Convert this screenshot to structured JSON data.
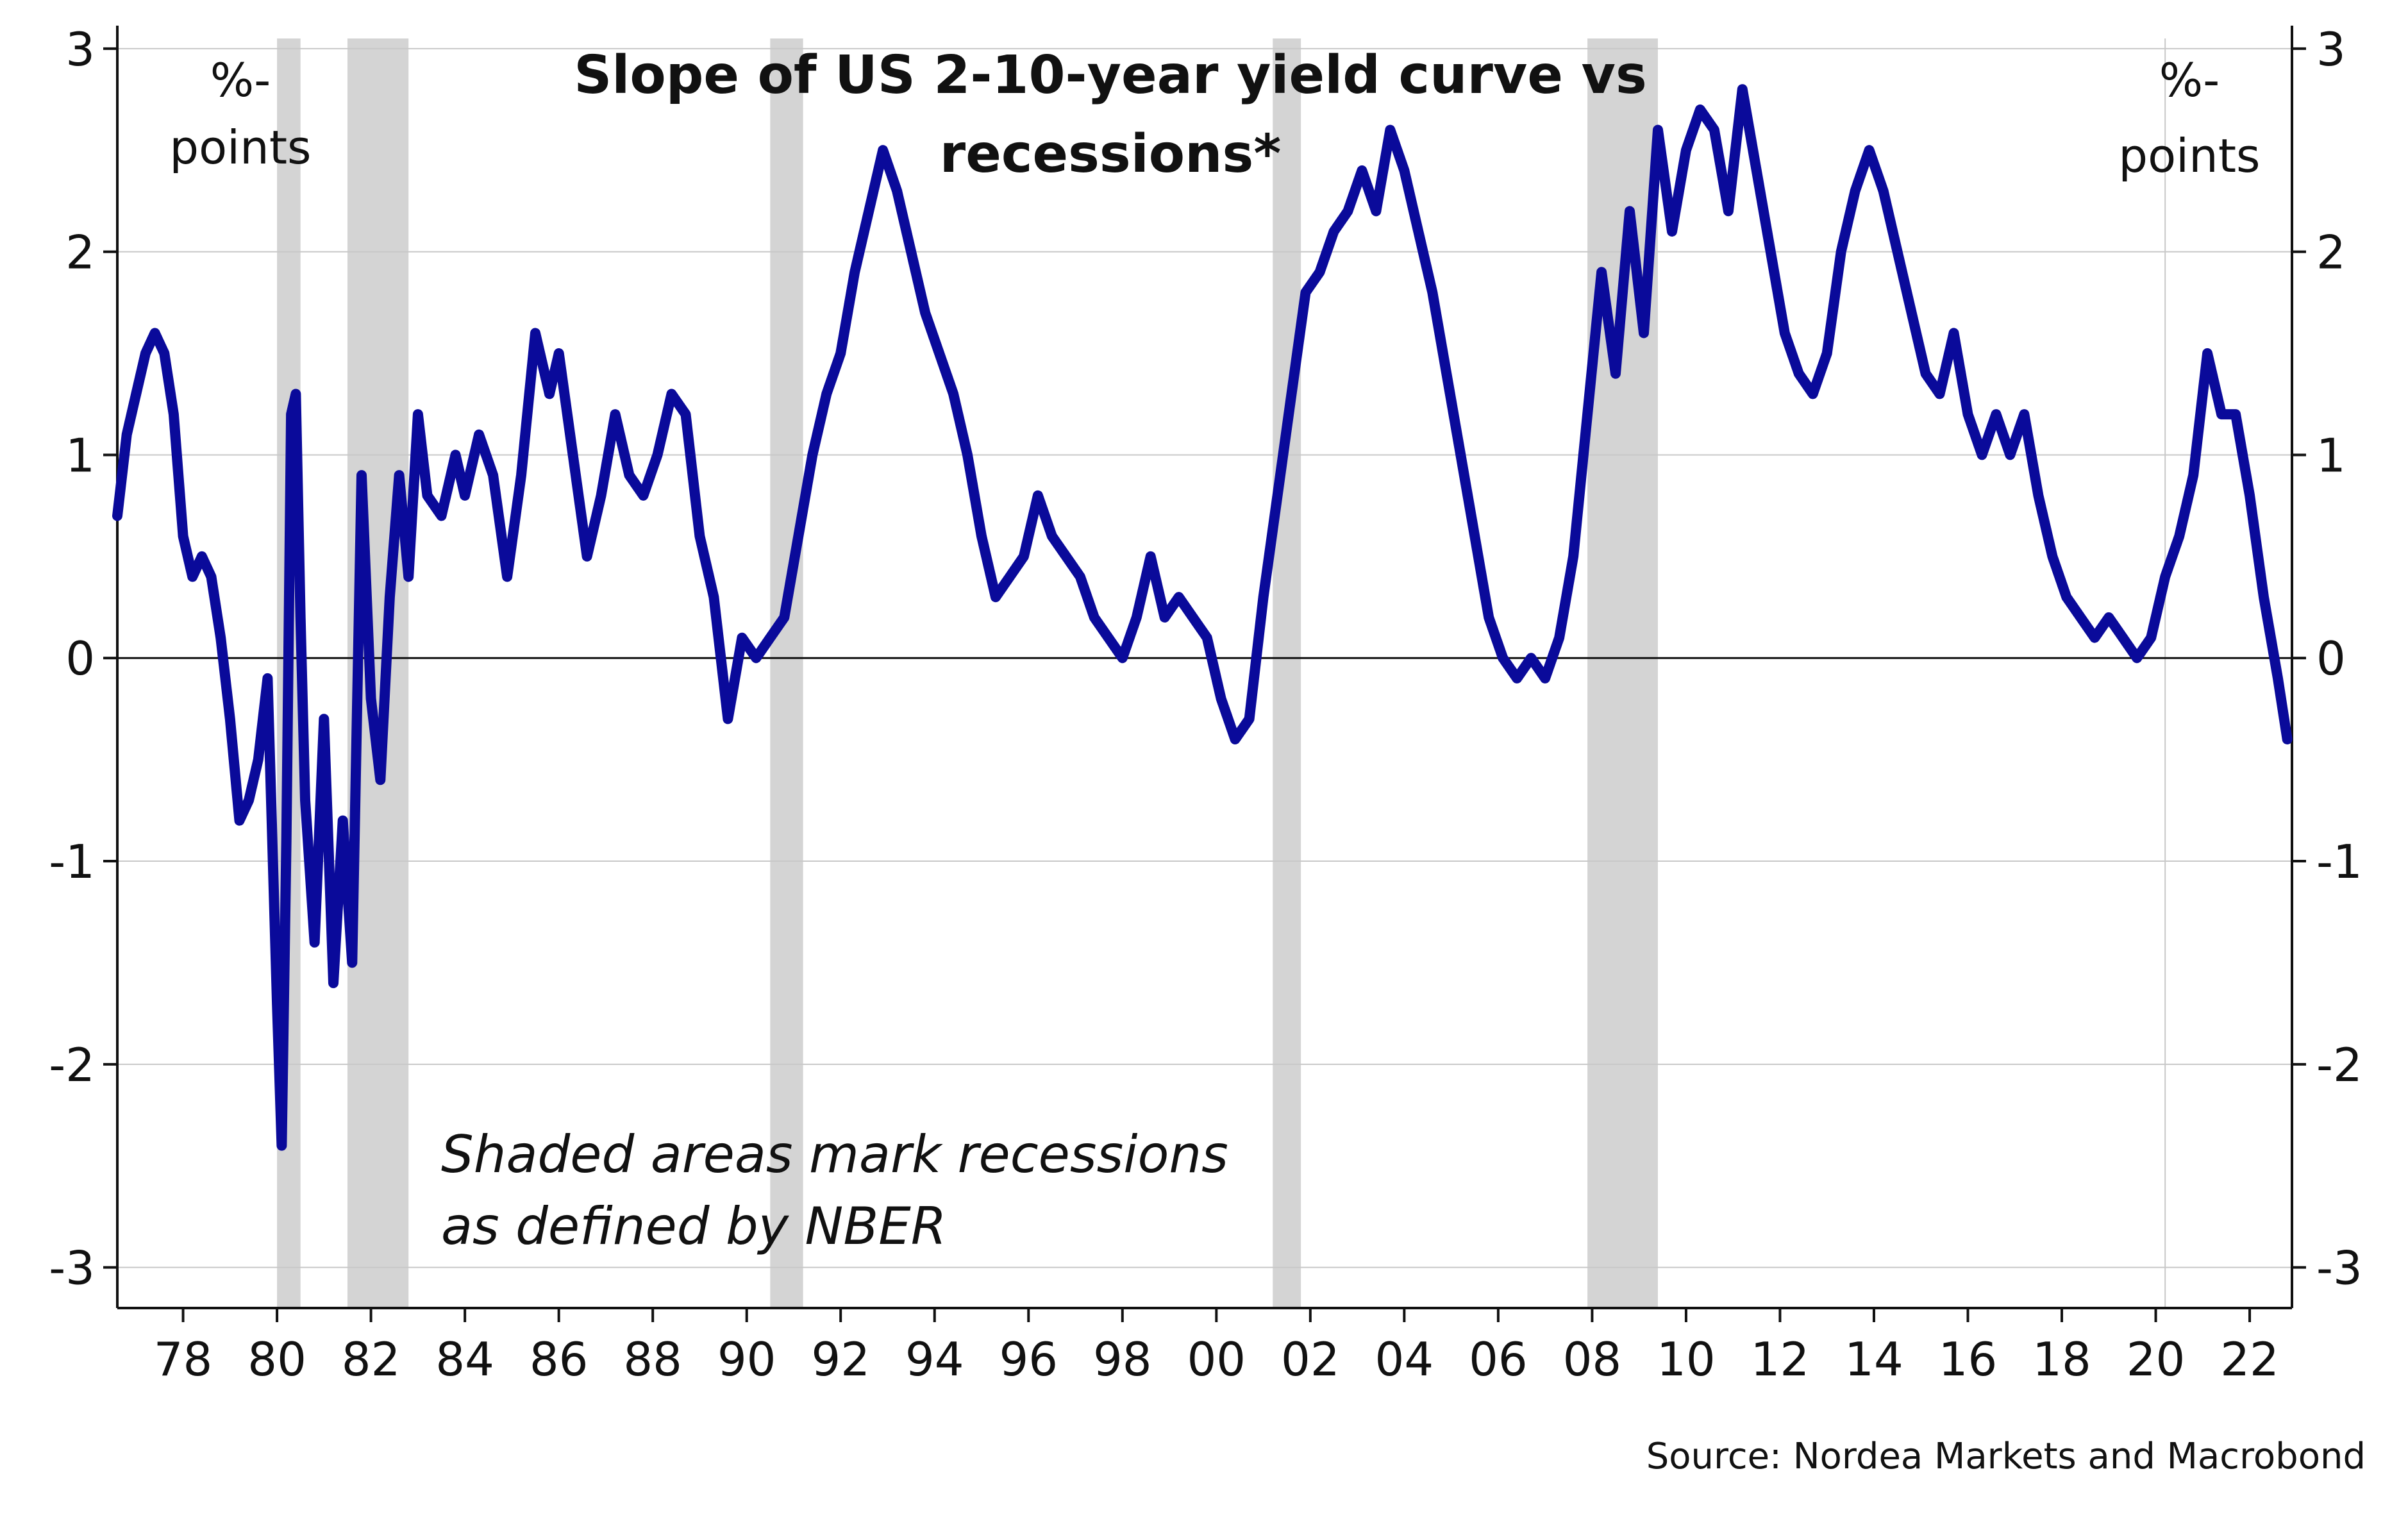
{
  "chart_data": {
    "type": "line",
    "title": "Slope of US 2-10-year yield curve vs recessions*",
    "title_lines": [
      "Slope of US 2-10-year yield curve vs",
      "recessions*"
    ],
    "ylabel_left": [
      "%-",
      "points"
    ],
    "ylabel_right": [
      "%-",
      "points"
    ],
    "annotation_lines": [
      "Shaded areas mark recessions",
      "as defined by NBER"
    ],
    "source": "Source: Nordea Markets and Macrobond",
    "xlim": [
      1976.6,
      2022.9
    ],
    "ylim": [
      -3.2,
      3.05
    ],
    "yticks": [
      3,
      2,
      1,
      0,
      -1,
      -2,
      -3
    ],
    "ytick_labels": [
      "3",
      "2",
      "1",
      "0",
      "-1",
      "-2",
      "-3"
    ],
    "xticks": [
      1978,
      1980,
      1982,
      1984,
      1986,
      1988,
      1990,
      1992,
      1994,
      1996,
      1998,
      2000,
      2002,
      2004,
      2006,
      2008,
      2010,
      2012,
      2014,
      2016,
      2018,
      2020,
      2022
    ],
    "xtick_labels": [
      "78",
      "80",
      "82",
      "84",
      "86",
      "88",
      "90",
      "92",
      "94",
      "96",
      "98",
      "00",
      "02",
      "04",
      "06",
      "08",
      "10",
      "12",
      "14",
      "16",
      "18",
      "20",
      "22"
    ],
    "grid": true,
    "legend": "none",
    "colors": {
      "line": "#0a0a9a",
      "recession": "#d4d4d4",
      "grid": "#c8c8c8",
      "axis": "#111111"
    },
    "recessions": [
      {
        "start": 1980.0,
        "end": 1980.5
      },
      {
        "start": 1981.5,
        "end": 1982.8
      },
      {
        "start": 1990.5,
        "end": 1991.2
      },
      {
        "start": 2001.2,
        "end": 2001.8
      },
      {
        "start": 2007.9,
        "end": 2009.4
      }
    ],
    "series": [
      {
        "x": [
          1976.6,
          1976.8,
          1977.0,
          1977.2,
          1977.4,
          1977.6,
          1977.8,
          1978.0,
          1978.2,
          1978.4,
          1978.6,
          1978.8,
          1979.0,
          1979.2,
          1979.4,
          1979.6,
          1979.8,
          1980.0,
          1980.1,
          1980.2,
          1980.3,
          1980.4,
          1980.5,
          1980.6,
          1980.8,
          1981.0,
          1981.2,
          1981.4,
          1981.6,
          1981.8,
          1982.0,
          1982.2,
          1982.4,
          1982.6,
          1982.8,
          1983.0,
          1983.2,
          1983.5,
          1983.8,
          1984.0,
          1984.3,
          1984.6,
          1984.9,
          1985.2,
          1985.5,
          1985.8,
          1986.0,
          1986.3,
          1986.6,
          1986.9,
          1987.2,
          1987.5,
          1987.8,
          1988.1,
          1988.4,
          1988.7,
          1989.0,
          1989.3,
          1989.6,
          1989.9,
          1990.2,
          1990.5,
          1990.8,
          1991.1,
          1991.4,
          1991.7,
          1992.0,
          1992.3,
          1992.6,
          1992.9,
          1993.2,
          1993.5,
          1993.8,
          1994.1,
          1994.4,
          1994.7,
          1995.0,
          1995.3,
          1995.6,
          1995.9,
          1996.2,
          1996.5,
          1996.8,
          1997.1,
          1997.4,
          1997.7,
          1998.0,
          1998.3,
          1998.6,
          1998.9,
          1999.2,
          1999.5,
          1999.8,
          2000.1,
          2000.4,
          2000.7,
          2001.0,
          2001.3,
          2001.6,
          2001.9,
          2002.2,
          2002.5,
          2002.8,
          2003.1,
          2003.4,
          2003.7,
          2004.0,
          2004.3,
          2004.6,
          2004.9,
          2005.2,
          2005.5,
          2005.8,
          2006.1,
          2006.4,
          2006.7,
          2007.0,
          2007.3,
          2007.6,
          2007.9,
          2008.2,
          2008.5,
          2008.8,
          2009.1,
          2009.4,
          2009.7,
          2010.0,
          2010.3,
          2010.6,
          2010.9,
          2011.2,
          2011.5,
          2011.8,
          2012.1,
          2012.4,
          2012.7,
          2013.0,
          2013.3,
          2013.6,
          2013.9,
          2014.2,
          2014.5,
          2014.8,
          2015.1,
          2015.4,
          2015.7,
          2016.0,
          2016.3,
          2016.6,
          2016.9,
          2017.2,
          2017.5,
          2017.8,
          2018.1,
          2018.4,
          2018.7,
          2019.0,
          2019.3,
          2019.6,
          2019.9,
          2020.2,
          2020.5,
          2020.8,
          2021.1,
          2021.4,
          2021.7,
          2022.0,
          2022.3,
          2022.6,
          2022.8
        ],
        "values": [
          0.7,
          1.1,
          1.3,
          1.5,
          1.6,
          1.5,
          1.2,
          0.6,
          0.4,
          0.5,
          0.4,
          0.1,
          -0.3,
          -0.8,
          -0.7,
          -0.5,
          -0.1,
          -1.7,
          -2.4,
          -0.9,
          1.2,
          1.3,
          0.2,
          -0.7,
          -1.4,
          -0.3,
          -1.6,
          -0.8,
          -1.5,
          0.9,
          -0.2,
          -0.6,
          0.3,
          0.9,
          0.4,
          1.2,
          0.8,
          0.7,
          1.0,
          0.8,
          1.1,
          0.9,
          0.4,
          0.9,
          1.6,
          1.3,
          1.5,
          1.0,
          0.5,
          0.8,
          1.2,
          0.9,
          0.8,
          1.0,
          1.3,
          1.2,
          0.6,
          0.3,
          -0.3,
          0.1,
          0.0,
          0.1,
          0.2,
          0.6,
          1.0,
          1.3,
          1.5,
          1.9,
          2.2,
          2.5,
          2.3,
          2.0,
          1.7,
          1.5,
          1.3,
          1.0,
          0.6,
          0.3,
          0.4,
          0.5,
          0.8,
          0.6,
          0.5,
          0.4,
          0.2,
          0.1,
          0.0,
          0.2,
          0.5,
          0.2,
          0.3,
          0.2,
          0.1,
          -0.2,
          -0.4,
          -0.3,
          0.3,
          0.8,
          1.3,
          1.8,
          1.9,
          2.1,
          2.2,
          2.4,
          2.2,
          2.6,
          2.4,
          2.1,
          1.8,
          1.4,
          1.0,
          0.6,
          0.2,
          0.0,
          -0.1,
          0.0,
          -0.1,
          0.1,
          0.5,
          1.2,
          1.9,
          1.4,
          2.2,
          1.6,
          2.6,
          2.1,
          2.5,
          2.7,
          2.6,
          2.2,
          2.8,
          2.4,
          2.0,
          1.6,
          1.4,
          1.3,
          1.5,
          2.0,
          2.3,
          2.5,
          2.3,
          2.0,
          1.7,
          1.4,
          1.3,
          1.6,
          1.2,
          1.0,
          1.2,
          1.0,
          1.2,
          0.8,
          0.5,
          0.3,
          0.2,
          0.1,
          0.2,
          0.1,
          0.0,
          0.1,
          0.4,
          0.6,
          0.9,
          1.5,
          1.2,
          1.2,
          0.8,
          0.3,
          -0.1,
          -0.4
        ]
      }
    ]
  }
}
